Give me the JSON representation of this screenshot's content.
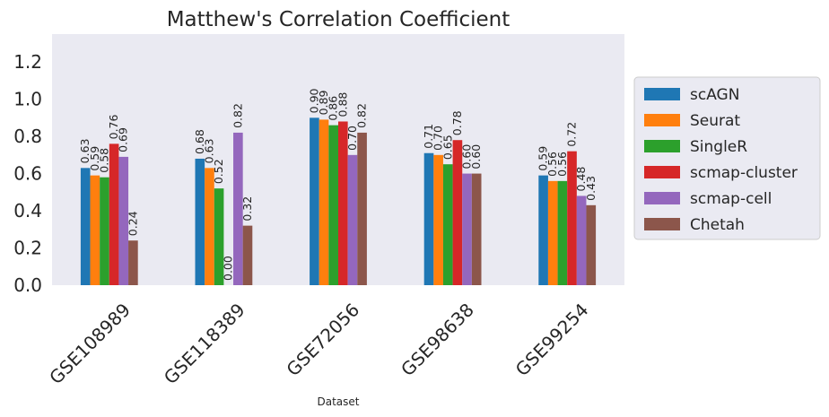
{
  "chart_data": {
    "type": "bar",
    "title": "Matthew's Correlation Coefficient",
    "xlabel": "Dataset",
    "ylabel": "",
    "ylim": [
      0,
      1.35
    ],
    "yticks": [
      "0.0",
      "0.2",
      "0.4",
      "0.6",
      "0.8",
      "1.0",
      "1.2"
    ],
    "categories": [
      "GSE108989",
      "GSE118389",
      "GSE72056",
      "GSE98638",
      "GSE99254"
    ],
    "series": [
      {
        "name": "scAGN",
        "color": "#1f77b4",
        "values": [
          0.63,
          0.68,
          0.9,
          0.71,
          0.59
        ],
        "labels": [
          "0.63",
          "0.68",
          "0.90",
          "0.71",
          "0.59"
        ]
      },
      {
        "name": "Seurat",
        "color": "#ff7f0e",
        "values": [
          0.59,
          0.63,
          0.89,
          0.7,
          0.56
        ],
        "labels": [
          "0.59",
          "0.63",
          "0.89",
          "0.70",
          "0.56"
        ]
      },
      {
        "name": "SingleR",
        "color": "#2ca02c",
        "values": [
          0.58,
          0.52,
          0.86,
          0.65,
          0.56
        ],
        "labels": [
          "0.58",
          "0.52",
          "0.86",
          "0.65",
          "0.56"
        ]
      },
      {
        "name": "scmap-cluster",
        "color": "#d62728",
        "values": [
          0.76,
          0.0,
          0.88,
          0.78,
          0.72
        ],
        "labels": [
          "0.76",
          "0.00",
          "0.88",
          "0.78",
          "0.72"
        ]
      },
      {
        "name": "scmap-cell",
        "color": "#9467bd",
        "values": [
          0.69,
          0.82,
          0.7,
          0.6,
          0.48
        ],
        "labels": [
          "0.69",
          "0.82",
          "0.70",
          "0.60",
          "0.48"
        ]
      },
      {
        "name": "Chetah",
        "color": "#8c564b",
        "values": [
          0.24,
          0.32,
          0.82,
          0.6,
          0.43
        ],
        "labels": [
          "0.24",
          "0.32",
          "0.82",
          "0.60",
          "0.43"
        ]
      }
    ],
    "grid": false,
    "legend_position": "right-outside"
  }
}
